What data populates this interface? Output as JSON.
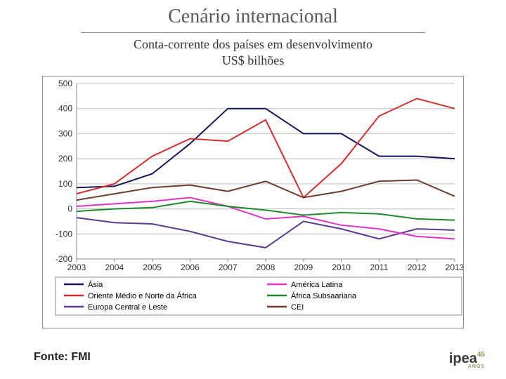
{
  "title": "Cenário internacional",
  "subtitle_line1": "Conta-corrente dos países em desenvolvimento",
  "subtitle_line2": "US$ bilhões",
  "source": "Fonte: FMI",
  "logo_text": "ipea",
  "logo_badge": "45",
  "logo_sub": "ANOS",
  "chart": {
    "type": "line",
    "background_color": "#ffffff",
    "border_color": "#888888",
    "grid_color": "#bfbfbf",
    "axis_color": "#888888",
    "axis_font_size": 12,
    "legend_font_size": 11,
    "x_categories": [
      "2003",
      "2004",
      "2005",
      "2006",
      "2007",
      "2008",
      "2009",
      "2010",
      "2011",
      "2012",
      "2013"
    ],
    "ylim": [
      -200,
      500
    ],
    "ytick_step": 100,
    "yticks": [
      -200,
      -100,
      0,
      100,
      200,
      300,
      400,
      500
    ],
    "line_width": 2,
    "series": [
      {
        "key": "asia",
        "label": "Ásia",
        "color": "#16165a",
        "values": [
          85,
          90,
          140,
          260,
          400,
          400,
          300,
          300,
          210,
          210,
          200
        ]
      },
      {
        "key": "me_naf",
        "label": "Oriente Médio e Norte da África",
        "color": "#d22f2f",
        "values": [
          60,
          100,
          210,
          280,
          270,
          355,
          45,
          180,
          370,
          440,
          400
        ]
      },
      {
        "key": "cee",
        "label": "Europa Central e Leste",
        "color": "#5b3a91",
        "values": [
          -35,
          -55,
          -60,
          -90,
          -130,
          -155,
          -50,
          -80,
          -120,
          -80,
          -85
        ]
      },
      {
        "key": "latam",
        "label": "América Latina",
        "color": "#e235c7",
        "values": [
          10,
          20,
          30,
          45,
          10,
          -40,
          -30,
          -65,
          -80,
          -110,
          -120
        ]
      },
      {
        "key": "ssa",
        "label": "África Subsaariana",
        "color": "#1f8a2c",
        "values": [
          -10,
          0,
          5,
          30,
          10,
          -5,
          -25,
          -15,
          -20,
          -40,
          -45
        ]
      },
      {
        "key": "cei",
        "label": "CEI",
        "color": "#6e3b2d",
        "values": [
          35,
          60,
          85,
          95,
          70,
          110,
          45,
          70,
          110,
          115,
          50
        ]
      }
    ],
    "legend_layout": [
      [
        "asia",
        "latam"
      ],
      [
        "me_naf",
        "ssa"
      ],
      [
        "cee",
        "cei"
      ]
    ]
  }
}
